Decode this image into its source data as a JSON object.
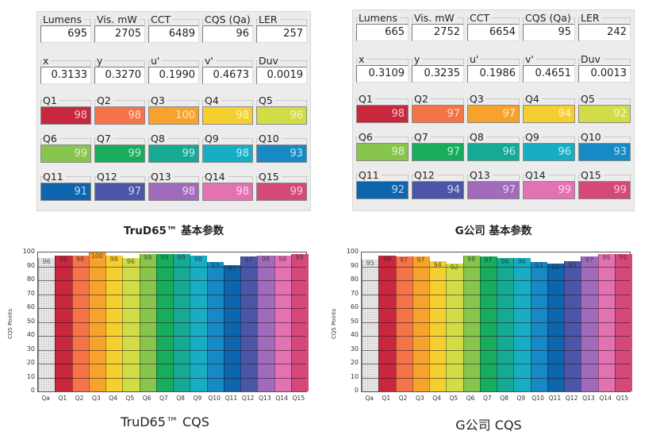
{
  "colors": {
    "Q1": "#c8273e",
    "Q2": "#f47348",
    "Q3": "#f6a22c",
    "Q4": "#f5cf2f",
    "Q5": "#d2dc47",
    "Q6": "#88c54d",
    "Q7": "#17ad5d",
    "Q8": "#16a994",
    "Q9": "#17aec4",
    "Q10": "#1789c4",
    "Q11": "#0d66ad",
    "Q12": "#4b56a8",
    "Q13": "#a16bbb",
    "Q14": "#e372b2",
    "Q15": "#d5497a"
  },
  "panels": [
    {
      "caption": "TruD65™ 基本参数",
      "row1": [
        {
          "label": "Lumens",
          "value": "695"
        },
        {
          "label": "Vis. mW",
          "value": "2705"
        },
        {
          "label": "CCT",
          "value": "6489"
        },
        {
          "label": "CQS (Qa)",
          "value": "96"
        },
        {
          "label": "LER",
          "value": "257"
        }
      ],
      "row2": [
        {
          "label": "x",
          "value": "0.3133"
        },
        {
          "label": "y",
          "value": "0.3270"
        },
        {
          "label": "u'",
          "value": "0.1990"
        },
        {
          "label": "v'",
          "value": "0.4673"
        },
        {
          "label": "Duv",
          "value": "0.0019"
        }
      ],
      "q": [
        {
          "label": "Q1",
          "value": "98"
        },
        {
          "label": "Q2",
          "value": "98"
        },
        {
          "label": "Q3",
          "value": "100"
        },
        {
          "label": "Q4",
          "value": "98"
        },
        {
          "label": "Q5",
          "value": "96"
        },
        {
          "label": "Q6",
          "value": "99"
        },
        {
          "label": "Q7",
          "value": "99"
        },
        {
          "label": "Q8",
          "value": "99"
        },
        {
          "label": "Q9",
          "value": "98"
        },
        {
          "label": "Q10",
          "value": "93"
        },
        {
          "label": "Q11",
          "value": "91"
        },
        {
          "label": "Q12",
          "value": "97"
        },
        {
          "label": "Q13",
          "value": "98"
        },
        {
          "label": "Q14",
          "value": "98"
        },
        {
          "label": "Q15",
          "value": "99"
        }
      ]
    },
    {
      "caption": "G公司 基本参数",
      "row1": [
        {
          "label": "Lumens",
          "value": "665"
        },
        {
          "label": "Vis. mW",
          "value": "2752"
        },
        {
          "label": "CCT",
          "value": "6654"
        },
        {
          "label": "CQS (Qa)",
          "value": "95"
        },
        {
          "label": "LER",
          "value": "242"
        }
      ],
      "row2": [
        {
          "label": "x",
          "value": "0.3109"
        },
        {
          "label": "y",
          "value": "0.3235"
        },
        {
          "label": "u'",
          "value": "0.1986"
        },
        {
          "label": "v'",
          "value": "0.4651"
        },
        {
          "label": "Duv",
          "value": "0.0013"
        }
      ],
      "q": [
        {
          "label": "Q1",
          "value": "98"
        },
        {
          "label": "Q2",
          "value": "97"
        },
        {
          "label": "Q3",
          "value": "97"
        },
        {
          "label": "Q4",
          "value": "94"
        },
        {
          "label": "Q5",
          "value": "92"
        },
        {
          "label": "Q6",
          "value": "98"
        },
        {
          "label": "Q7",
          "value": "97"
        },
        {
          "label": "Q8",
          "value": "96"
        },
        {
          "label": "Q9",
          "value": "96"
        },
        {
          "label": "Q10",
          "value": "93"
        },
        {
          "label": "Q11",
          "value": "92"
        },
        {
          "label": "Q12",
          "value": "94"
        },
        {
          "label": "Q13",
          "value": "97"
        },
        {
          "label": "Q14",
          "value": "99"
        },
        {
          "label": "Q15",
          "value": "99"
        }
      ]
    }
  ],
  "chart_data": [
    {
      "type": "bar",
      "title": "TruD65™ CQS",
      "xlabel": "",
      "ylabel": "CQS Points",
      "ylim": [
        0,
        100
      ],
      "yticks": [
        0,
        10,
        20,
        30,
        40,
        50,
        60,
        70,
        80,
        90,
        100
      ],
      "grid": true,
      "categories": [
        "Qa",
        "Q1",
        "Q2",
        "Q3",
        "Q4",
        "Q5",
        "Q6",
        "Q7",
        "Q8",
        "Q9",
        "Q10",
        "Q11",
        "Q12",
        "Q13",
        "Q14",
        "Q15"
      ],
      "values": [
        96,
        98,
        98,
        100,
        98,
        96,
        99,
        99,
        99,
        98,
        93,
        91,
        97,
        98,
        98,
        99
      ]
    },
    {
      "type": "bar",
      "title": "G公司 CQS",
      "xlabel": "",
      "ylabel": "CQS Points",
      "ylim": [
        0,
        100
      ],
      "yticks": [
        0,
        10,
        20,
        30,
        40,
        50,
        60,
        70,
        80,
        90,
        100
      ],
      "grid": true,
      "categories": [
        "Qa",
        "Q1",
        "Q2",
        "Q3",
        "Q4",
        "Q5",
        "Q6",
        "Q7",
        "Q8",
        "Q9",
        "Q10",
        "Q11",
        "Q12",
        "Q13",
        "Q14",
        "Q15"
      ],
      "values": [
        95,
        98,
        97,
        97,
        94,
        92,
        98,
        97,
        96,
        96,
        93,
        92,
        94,
        97,
        99,
        99
      ]
    }
  ]
}
